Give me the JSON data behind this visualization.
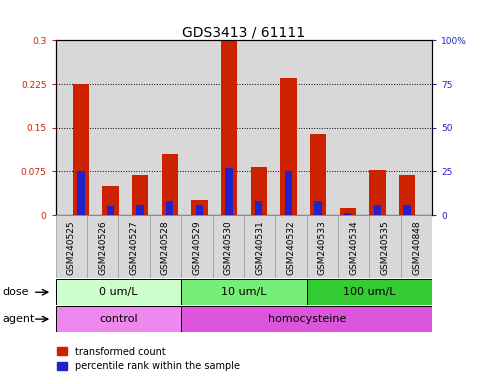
{
  "title": "GDS3413 / 61111",
  "samples": [
    "GSM240525",
    "GSM240526",
    "GSM240527",
    "GSM240528",
    "GSM240529",
    "GSM240530",
    "GSM240531",
    "GSM240532",
    "GSM240533",
    "GSM240534",
    "GSM240535",
    "GSM240848"
  ],
  "red_values": [
    0.225,
    0.05,
    0.068,
    0.105,
    0.025,
    0.3,
    0.082,
    0.235,
    0.14,
    0.012,
    0.078,
    0.068
  ],
  "blue_values_pct": [
    25,
    5,
    6,
    8,
    6,
    27,
    8,
    25,
    8,
    1,
    6,
    6
  ],
  "red_color": "#cc2200",
  "blue_color": "#2222cc",
  "ylim_left": [
    0,
    0.3
  ],
  "ylim_right": [
    0,
    100
  ],
  "yticks_left": [
    0,
    0.075,
    0.15,
    0.225,
    0.3
  ],
  "ytick_labels_left": [
    "0",
    "0.075",
    "0.15",
    "0.225",
    "0.3"
  ],
  "yticks_right": [
    0,
    25,
    50,
    75,
    100
  ],
  "ytick_labels_right": [
    "0",
    "25",
    "50",
    "75",
    "100%"
  ],
  "dose_groups": [
    {
      "label": "0 um/L",
      "start": 0,
      "end": 4,
      "color": "#ccffcc"
    },
    {
      "label": "10 um/L",
      "start": 4,
      "end": 8,
      "color": "#77ee77"
    },
    {
      "label": "100 um/L",
      "start": 8,
      "end": 12,
      "color": "#33cc33"
    }
  ],
  "agent_groups": [
    {
      "label": "control",
      "start": 0,
      "end": 4,
      "color": "#ee88ee"
    },
    {
      "label": "homocysteine",
      "start": 4,
      "end": 12,
      "color": "#dd55dd"
    }
  ],
  "dose_label": "dose",
  "agent_label": "agent",
  "legend_red": "transformed count",
  "legend_blue": "percentile rank within the sample",
  "red_bar_width": 0.55,
  "blue_bar_width": 0.25,
  "bg_color": "#d8d8d8",
  "title_fontsize": 10,
  "tick_label_fontsize": 6.5,
  "row_label_fontsize": 8,
  "group_label_fontsize": 8
}
